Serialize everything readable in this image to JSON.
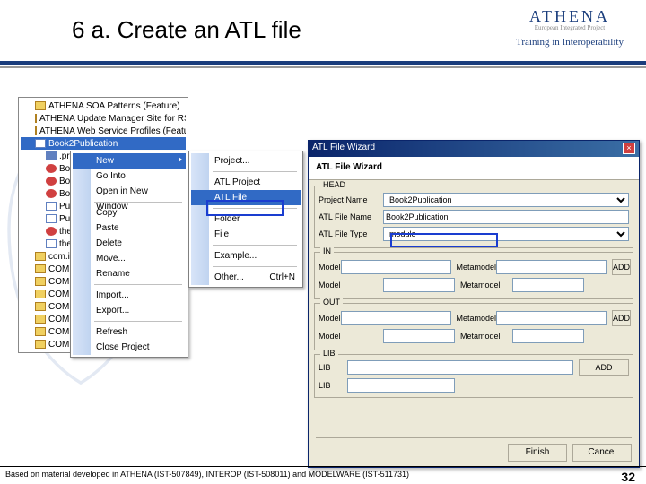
{
  "header": {
    "title": "6 a. Create an ATL file",
    "logo": "ATHENA",
    "logo_sub": "European Integrated Project",
    "tagline": "Training in Interoperability",
    "title_color": "#000000",
    "accent_color": "#1a3d7c"
  },
  "tree": {
    "background": "#ffffff",
    "items": [
      {
        "indent": 0,
        "icon": "ti-folder",
        "label": "ATHENA SOA Patterns (Feature)"
      },
      {
        "indent": 0,
        "icon": "ti-folder",
        "label": "ATHENA Update Manager Site for RSM"
      },
      {
        "indent": 0,
        "icon": "ti-folder",
        "label": "ATHENA Web Service Profiles (Feature)"
      },
      {
        "indent": 0,
        "icon": "ti-doc",
        "label": "Book2Publication",
        "selected": true
      },
      {
        "indent": 1,
        "icon": "ti-blue",
        "label": ".project"
      },
      {
        "indent": 1,
        "icon": "ti-red",
        "label": "Book2"
      },
      {
        "indent": 1,
        "icon": "ti-red",
        "label": "Book2"
      },
      {
        "indent": 1,
        "icon": "ti-red",
        "label": "Book2"
      },
      {
        "indent": 1,
        "icon": "ti-doc",
        "label": "Public"
      },
      {
        "indent": 1,
        "icon": "ti-doc",
        "label": "Public"
      },
      {
        "indent": 1,
        "icon": "ti-red",
        "label": "theBook"
      },
      {
        "indent": 1,
        "icon": "ti-doc",
        "label": "theBook"
      },
      {
        "indent": 0,
        "icon": "ti-folder",
        "label": "com.ibm.x"
      },
      {
        "indent": 0,
        "icon": "ti-folder",
        "label": "COMPT T"
      },
      {
        "indent": 0,
        "icon": "ti-folder",
        "label": "COMPT T"
      },
      {
        "indent": 0,
        "icon": "ti-folder",
        "label": "COMPT T"
      },
      {
        "indent": 0,
        "icon": "ti-folder",
        "label": "COMPT T"
      },
      {
        "indent": 0,
        "icon": "ti-folder",
        "label": "COMPT T"
      },
      {
        "indent": 0,
        "icon": "ti-folder",
        "label": "COMPT T"
      },
      {
        "indent": 0,
        "icon": "ti-folder",
        "label": "COMPT T"
      }
    ]
  },
  "ctx": {
    "highlight_color": "#316ac5",
    "items": [
      {
        "label": "New",
        "selected": true,
        "arrow": true
      },
      {
        "label": "Go Into"
      },
      {
        "label": "Open in New Window"
      },
      {
        "sep": true
      },
      {
        "label": "Copy",
        "icon": "copy"
      },
      {
        "label": "Paste",
        "icon": "paste"
      },
      {
        "label": "Delete",
        "icon": "delete"
      },
      {
        "label": "Move..."
      },
      {
        "label": "Rename"
      },
      {
        "sep": true
      },
      {
        "label": "Import...",
        "icon": "import"
      },
      {
        "label": "Export...",
        "icon": "export"
      },
      {
        "sep": true
      },
      {
        "label": "Refresh",
        "icon": "refresh"
      },
      {
        "label": "Close Project"
      }
    ]
  },
  "submenu": {
    "items": [
      {
        "label": "Project..."
      },
      {
        "sep": true
      },
      {
        "label": "ATL Project",
        "icon": "atl"
      },
      {
        "label": "ATL File",
        "icon": "atl",
        "selected": true,
        "highlight": true
      },
      {
        "sep": true
      },
      {
        "label": "Folder",
        "icon": "folder"
      },
      {
        "label": "File",
        "icon": "file"
      },
      {
        "sep": true
      },
      {
        "label": "Example..."
      },
      {
        "sep": true
      },
      {
        "label": "Other...",
        "keys": "Ctrl+N"
      }
    ]
  },
  "wizard": {
    "title": "ATL File Wizard",
    "header": "ATL File Wizard",
    "head_group": {
      "label": "HEAD",
      "project_name_label": "Project Name",
      "project_name_value": "Book2Publication",
      "file_name_label": "ATL File Name",
      "file_name_value": "Book2Publication",
      "file_name_highlight": true,
      "file_type_label": "ATL File Type",
      "file_type_value": "module"
    },
    "in_group": {
      "label": "IN",
      "model_label": "Model",
      "model_value": "",
      "metamodel_label": "Metamodel",
      "metamodel_value": "",
      "add_label": "ADD",
      "model2_label": "Model",
      "metamodel2_label": "Metamodel"
    },
    "out_group": {
      "label": "OUT",
      "model_label": "Model",
      "model_value": "",
      "metamodel_label": "Metamodel",
      "metamodel_value": "",
      "add_label": "ADD",
      "model2_label": "Model",
      "metamodel2_label": "Metamodel"
    },
    "lib_group": {
      "label": "LIB",
      "lib_label": "LIB",
      "lib_value": "",
      "add_label": "ADD",
      "lib2_label": "LIB"
    },
    "buttons": {
      "finish": "Finish",
      "cancel": "Cancel"
    },
    "colors": {
      "bg": "#ece9d8",
      "border": "#aca899",
      "titlebar_from": "#0a246a",
      "titlebar_to": "#3a6ea5"
    }
  },
  "footer": {
    "text": "Based on material developed in ATHENA (IST-507849), INTEROP (IST-508011) and MODELWARE (IST-511731)",
    "page": "32"
  }
}
